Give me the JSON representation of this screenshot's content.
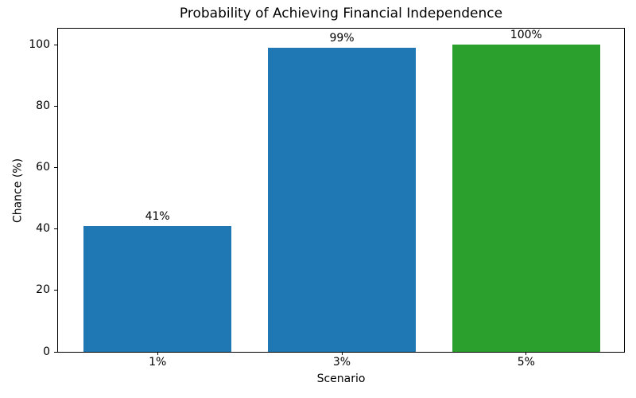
{
  "chart_data": {
    "type": "bar",
    "title": "Probability of Achieving Financial Independence",
    "xlabel": "Scenario",
    "ylabel": "Chance (%)",
    "categories": [
      "1%",
      "3%",
      "5%"
    ],
    "values": [
      41,
      99,
      100
    ],
    "bar_labels": [
      "41%",
      "99%",
      "100%"
    ],
    "bar_colors": [
      "#1f77b4",
      "#1f77b4",
      "#2ca02c"
    ],
    "yticks": [
      0,
      20,
      40,
      60,
      80,
      100
    ],
    "ylim": [
      0,
      105.7
    ],
    "grid": false,
    "legend": false,
    "background_color": "#ffffff",
    "spine_color": "#000000"
  }
}
